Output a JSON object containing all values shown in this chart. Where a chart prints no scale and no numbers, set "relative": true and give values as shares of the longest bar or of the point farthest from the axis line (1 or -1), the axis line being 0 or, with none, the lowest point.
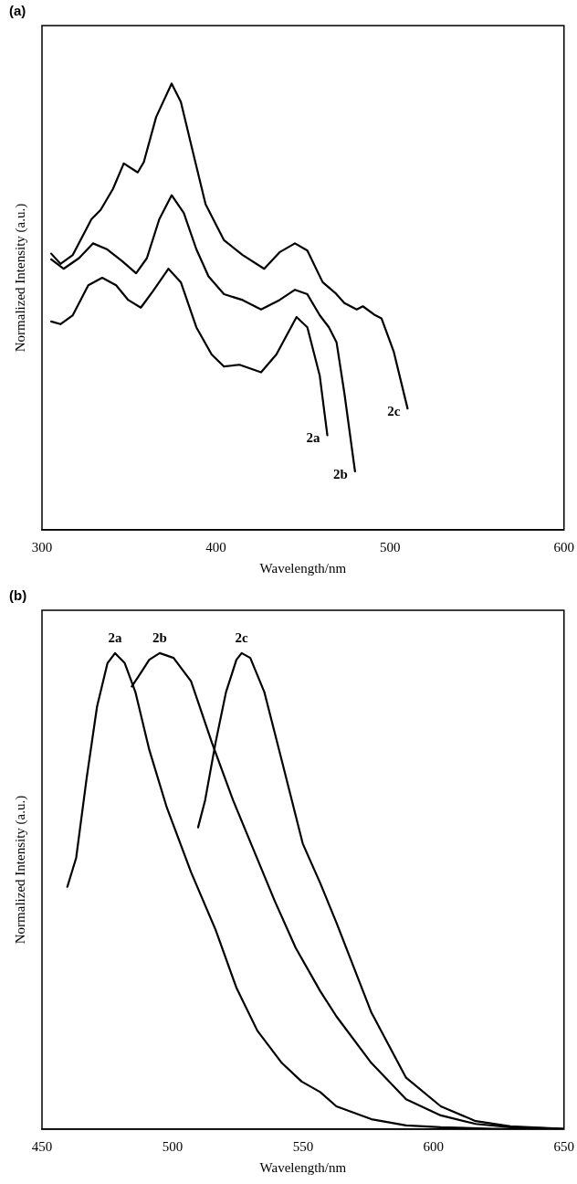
{
  "chart_data": [
    {
      "type": "line",
      "title": "(a)",
      "xlabel": "Wavelength/nm",
      "ylabel": "Normalized Intensity (a.u.)",
      "relative": true,
      "xlim": [
        300,
        600
      ],
      "xticks": [
        300,
        400,
        500,
        600
      ],
      "grid": false,
      "legend": false,
      "marker": "none",
      "line_style": "solid",
      "series": [
        {
          "name": "2a",
          "color": "#000000",
          "x": [
            305.3,
            310.6,
            317.7,
            326.6,
            334.6,
            342.6,
            349.6,
            356.8,
            363.8,
            372.7,
            379.8,
            388.7,
            397.5,
            404.6,
            413.5,
            425.9,
            434.7,
            446.3,
            452.5,
            459.6,
            464.0
          ],
          "values": [
            0.467,
            0.461,
            0.481,
            0.548,
            0.565,
            0.548,
            0.515,
            0.498,
            0.535,
            0.585,
            0.555,
            0.454,
            0.393,
            0.366,
            0.37,
            0.353,
            0.393,
            0.477,
            0.454,
            0.346,
            0.212
          ]
        },
        {
          "name": "2b",
          "color": "#000000",
          "x": [
            305.3,
            312.4,
            321.3,
            329.3,
            337.2,
            346.1,
            354.1,
            360.3,
            367.4,
            374.5,
            381.5,
            388.7,
            395.7,
            404.6,
            415.3,
            425.9,
            436.5,
            445.4,
            452.5,
            459.6,
            464.9,
            469.3,
            473.8,
            479.9
          ],
          "values": [
            0.606,
            0.585,
            0.609,
            0.642,
            0.629,
            0.602,
            0.575,
            0.609,
            0.696,
            0.75,
            0.71,
            0.629,
            0.568,
            0.528,
            0.515,
            0.494,
            0.515,
            0.538,
            0.528,
            0.481,
            0.454,
            0.42,
            0.306,
            0.131
          ]
        },
        {
          "name": "2c",
          "color": "#000000",
          "x": [
            305.3,
            310.6,
            317.7,
            328.4,
            333.7,
            340.8,
            347.0,
            355.0,
            358.5,
            365.6,
            374.5,
            379.8,
            386.9,
            394.0,
            404.6,
            415.3,
            427.7,
            436.5,
            445.4,
            452.5,
            461.3,
            468.5,
            473.8,
            480.9,
            484.4,
            491.5,
            495.1,
            502.1,
            510.1
          ],
          "values": [
            0.619,
            0.596,
            0.616,
            0.696,
            0.717,
            0.764,
            0.821,
            0.801,
            0.824,
            0.925,
            1.0,
            0.959,
            0.844,
            0.73,
            0.649,
            0.616,
            0.585,
            0.622,
            0.642,
            0.626,
            0.555,
            0.531,
            0.508,
            0.494,
            0.501,
            0.481,
            0.474,
            0.4,
            0.272
          ]
        }
      ]
    },
    {
      "type": "line",
      "title": "(b)",
      "xlabel": "Wavelength/nm",
      "ylabel": "Normalized Intensity (a.u.)",
      "relative": true,
      "xlim": [
        450,
        650
      ],
      "xticks": [
        450,
        500,
        550,
        600,
        650
      ],
      "grid": false,
      "legend": false,
      "marker": "none",
      "line_style": "solid",
      "series": [
        {
          "name": "2a",
          "color": "#000000",
          "x": [
            459.7,
            463.1,
            467.1,
            471.1,
            475.1,
            478.0,
            481.7,
            485.8,
            491.1,
            497.8,
            507.1,
            516.5,
            524.5,
            532.5,
            541.9,
            549.5,
            556.6,
            562.8,
            576.2,
            589.5,
            602.8,
            622.9,
            649.6
          ],
          "values": [
            0.509,
            0.57,
            0.737,
            0.888,
            0.979,
            1.0,
            0.979,
            0.918,
            0.797,
            0.676,
            0.54,
            0.419,
            0.297,
            0.207,
            0.139,
            0.1,
            0.078,
            0.048,
            0.021,
            0.008,
            0.004,
            0.001,
            0
          ]
        },
        {
          "name": "2b",
          "color": "#000000",
          "x": [
            484.4,
            487.1,
            491.1,
            495.1,
            500.4,
            507.1,
            515.1,
            523.2,
            531.2,
            539.2,
            547.2,
            556.6,
            562.8,
            576.2,
            589.5,
            602.8,
            616.2,
            629.5,
            649.6
          ],
          "values": [
            0.93,
            0.952,
            0.986,
            1.0,
            0.99,
            0.941,
            0.812,
            0.691,
            0.585,
            0.479,
            0.381,
            0.29,
            0.237,
            0.139,
            0.063,
            0.029,
            0.011,
            0.004,
            0.001
          ]
        },
        {
          "name": "2c",
          "color": "#000000",
          "x": [
            509.8,
            512.5,
            516.5,
            520.5,
            524.5,
            526.5,
            529.8,
            535.2,
            541.9,
            549.9,
            556.6,
            562.8,
            576.2,
            589.5,
            602.8,
            616.2,
            629.5,
            649.6
          ],
          "values": [
            0.634,
            0.691,
            0.812,
            0.918,
            0.986,
            1.0,
            0.99,
            0.918,
            0.774,
            0.6,
            0.517,
            0.434,
            0.245,
            0.108,
            0.048,
            0.017,
            0.006,
            0.001
          ]
        }
      ]
    }
  ]
}
